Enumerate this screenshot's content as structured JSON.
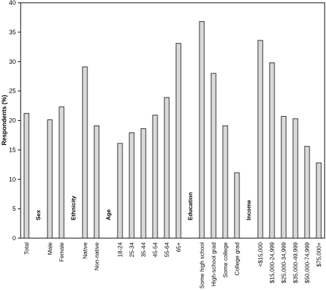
{
  "chart_data": {
    "type": "bar",
    "ylabel": "Respondents (%)",
    "ylim": [
      0,
      40
    ],
    "yticks": [
      0,
      5,
      10,
      15,
      20,
      25,
      30,
      35,
      40
    ],
    "grid": false,
    "bar_color": "#d9d9d9",
    "categories": [
      "Total",
      "Sex",
      "Male",
      "Female",
      "Ethnicity",
      "Native",
      "Non-native",
      "Age",
      "18-24",
      "25-34",
      "35-44",
      "45-54",
      "55-64",
      "65+",
      "Education",
      "Some high school",
      "High-school grad",
      "Some college",
      "College grad",
      "Income",
      "<$15,000",
      "$15,000-24,999",
      "$25,000-34,999",
      "$35,000-49,999",
      "$50,000-74,999",
      "$75,000+"
    ],
    "values": [
      21.2,
      null,
      20.1,
      22.3,
      null,
      29.1,
      19.1,
      null,
      16.1,
      17.9,
      18.6,
      20.9,
      23.9,
      33.1,
      null,
      36.8,
      28.0,
      19.1,
      11.1,
      null,
      33.6,
      29.8,
      20.7,
      20.3,
      15.6,
      12.8
    ],
    "group_headers": [
      "Sex",
      "Ethnicity",
      "Age",
      "Education",
      "Income"
    ]
  }
}
